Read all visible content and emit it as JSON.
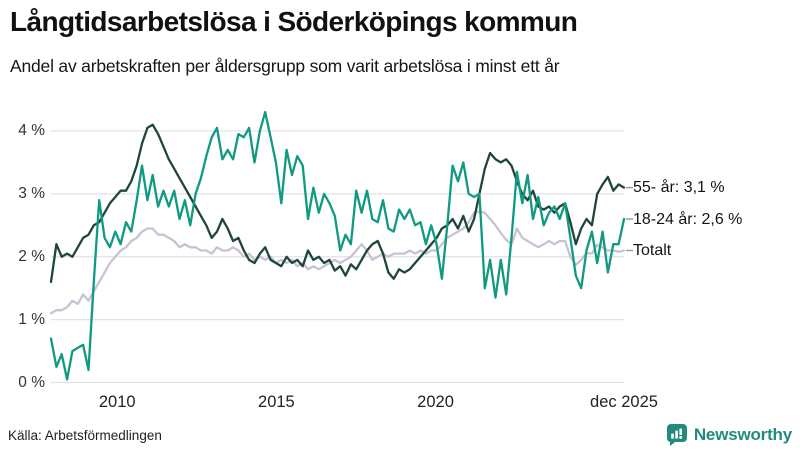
{
  "header": {
    "title": "Långtidsarbetslösa i Söderköpings kommun",
    "subtitle": "Andel av arbetskraften per åldersgrupp som varit arbetslösa i minst ett år"
  },
  "footer": {
    "source": "Källa: Arbetsförmedlingen",
    "brand": "Newsworthy"
  },
  "colors": {
    "series_55": "#20463c",
    "series_1824": "#0f9a81",
    "series_total": "#c6c4d4",
    "grid": "#e3e3e7",
    "leader": "#999999",
    "brand_teal": "#228b7e"
  },
  "chart_data": {
    "type": "line",
    "title": "Långtidsarbetslösa i Söderköpings kommun",
    "subtitle": "Andel av arbetskraften per åldersgrupp som varit arbetslösa i minst ett år",
    "unit": "%",
    "x_start": 2007.92,
    "x_end": 2025.92,
    "ylim": [
      0,
      4.4
    ],
    "grid": true,
    "legend_position": "right-end-labels",
    "y_ticks": [
      {
        "value": 0,
        "label": "0 %"
      },
      {
        "value": 1,
        "label": "1 %"
      },
      {
        "value": 2,
        "label": "2 %"
      },
      {
        "value": 3,
        "label": "3 %"
      },
      {
        "value": 4,
        "label": "4 %"
      }
    ],
    "x_ticks": [
      {
        "value": 2010,
        "label": "2010"
      },
      {
        "value": 2015,
        "label": "2015"
      },
      {
        "value": 2020,
        "label": "2020"
      },
      {
        "value": 2025.92,
        "label": "dec 2025"
      }
    ],
    "series": [
      {
        "name": "Totalt",
        "label": "Totalt",
        "end_value_text": "",
        "color": "#c6c4d4",
        "values": [
          1.1,
          1.15,
          1.15,
          1.2,
          1.3,
          1.25,
          1.4,
          1.3,
          1.45,
          1.6,
          1.75,
          1.9,
          2.0,
          2.1,
          2.15,
          2.25,
          2.3,
          2.4,
          2.45,
          2.45,
          2.35,
          2.35,
          2.3,
          2.25,
          2.15,
          2.2,
          2.15,
          2.15,
          2.1,
          2.1,
          2.05,
          2.15,
          2.1,
          2.1,
          2.15,
          2.1,
          2.0,
          2.05,
          1.95,
          2.0,
          1.95,
          2.0,
          1.9,
          1.95,
          1.9,
          1.95,
          1.85,
          1.9,
          1.8,
          1.85,
          1.8,
          1.85,
          1.9,
          1.95,
          1.9,
          1.95,
          2.0,
          2.1,
          2.2,
          2.1,
          1.95,
          2.0,
          2.05,
          2.0,
          2.05,
          2.05,
          2.05,
          2.1,
          2.05,
          2.1,
          2.05,
          2.1,
          2.1,
          2.2,
          2.3,
          2.35,
          2.4,
          2.45,
          2.55,
          2.7,
          2.72,
          2.7,
          2.6,
          2.5,
          2.38,
          2.27,
          2.2,
          2.45,
          2.3,
          2.25,
          2.2,
          2.15,
          2.2,
          2.25,
          2.2,
          2.25,
          2.25,
          2.0,
          1.87,
          1.95,
          2.06,
          2.05,
          2.19,
          2.15,
          2.1,
          2.1,
          2.08,
          2.1
        ]
      },
      {
        "name": "55- år",
        "label": "55- år: 3,1 %",
        "end_value_text": "3,1 %",
        "color": "#20463c",
        "values": [
          1.6,
          2.2,
          2.0,
          2.05,
          2.0,
          2.15,
          2.3,
          2.35,
          2.5,
          2.55,
          2.7,
          2.85,
          2.95,
          3.05,
          3.05,
          3.2,
          3.45,
          3.8,
          4.05,
          4.1,
          3.95,
          3.75,
          3.55,
          3.4,
          3.25,
          3.1,
          2.95,
          2.8,
          2.65,
          2.5,
          2.3,
          2.4,
          2.6,
          2.45,
          2.25,
          2.3,
          2.1,
          1.95,
          1.9,
          2.05,
          2.15,
          1.95,
          1.9,
          1.85,
          2.0,
          1.9,
          1.95,
          1.85,
          2.1,
          1.95,
          2.0,
          1.9,
          1.95,
          1.78,
          1.85,
          1.7,
          1.88,
          1.8,
          1.95,
          2.1,
          2.2,
          2.25,
          2.05,
          1.75,
          1.65,
          1.8,
          1.75,
          1.8,
          1.9,
          2.0,
          2.1,
          2.2,
          2.3,
          2.45,
          2.5,
          2.6,
          2.45,
          2.65,
          2.4,
          2.6,
          3.0,
          3.4,
          3.65,
          3.55,
          3.5,
          3.55,
          3.45,
          3.2,
          3.0,
          2.9,
          3.05,
          2.8,
          2.75,
          2.8,
          2.7,
          2.8,
          2.85,
          2.55,
          2.2,
          2.45,
          2.6,
          2.5,
          3.0,
          3.15,
          3.27,
          3.05,
          3.15,
          3.1
        ]
      },
      {
        "name": "18-24 år",
        "label": "18-24 år: 2,6 %",
        "end_value_text": "2,6 %",
        "color": "#0f9a81",
        "values": [
          0.7,
          0.25,
          0.45,
          0.05,
          0.5,
          0.55,
          0.6,
          0.2,
          1.6,
          2.9,
          2.3,
          2.15,
          2.4,
          2.2,
          2.55,
          2.4,
          2.9,
          3.45,
          2.9,
          3.3,
          2.8,
          3.05,
          2.8,
          3.05,
          2.6,
          2.9,
          2.5,
          3.0,
          3.25,
          3.6,
          3.9,
          4.05,
          3.55,
          3.7,
          3.55,
          3.95,
          3.9,
          4.05,
          3.5,
          4.0,
          4.3,
          3.9,
          3.5,
          2.85,
          3.7,
          3.3,
          3.6,
          3.45,
          2.6,
          3.1,
          2.7,
          3.0,
          2.85,
          2.65,
          2.1,
          2.35,
          2.2,
          3.05,
          2.7,
          3.05,
          2.6,
          2.55,
          2.9,
          2.45,
          2.4,
          2.75,
          2.6,
          2.75,
          2.5,
          2.55,
          2.2,
          2.5,
          2.2,
          1.65,
          2.5,
          3.45,
          3.2,
          3.5,
          3.0,
          2.95,
          3.0,
          1.5,
          1.95,
          1.35,
          1.95,
          1.4,
          2.3,
          3.35,
          2.85,
          3.3,
          2.6,
          2.95,
          2.5,
          2.7,
          2.8,
          2.6,
          2.85,
          2.3,
          1.7,
          1.5,
          2.1,
          2.4,
          1.9,
          2.4,
          1.75,
          2.2,
          2.2,
          2.6
        ]
      }
    ]
  }
}
